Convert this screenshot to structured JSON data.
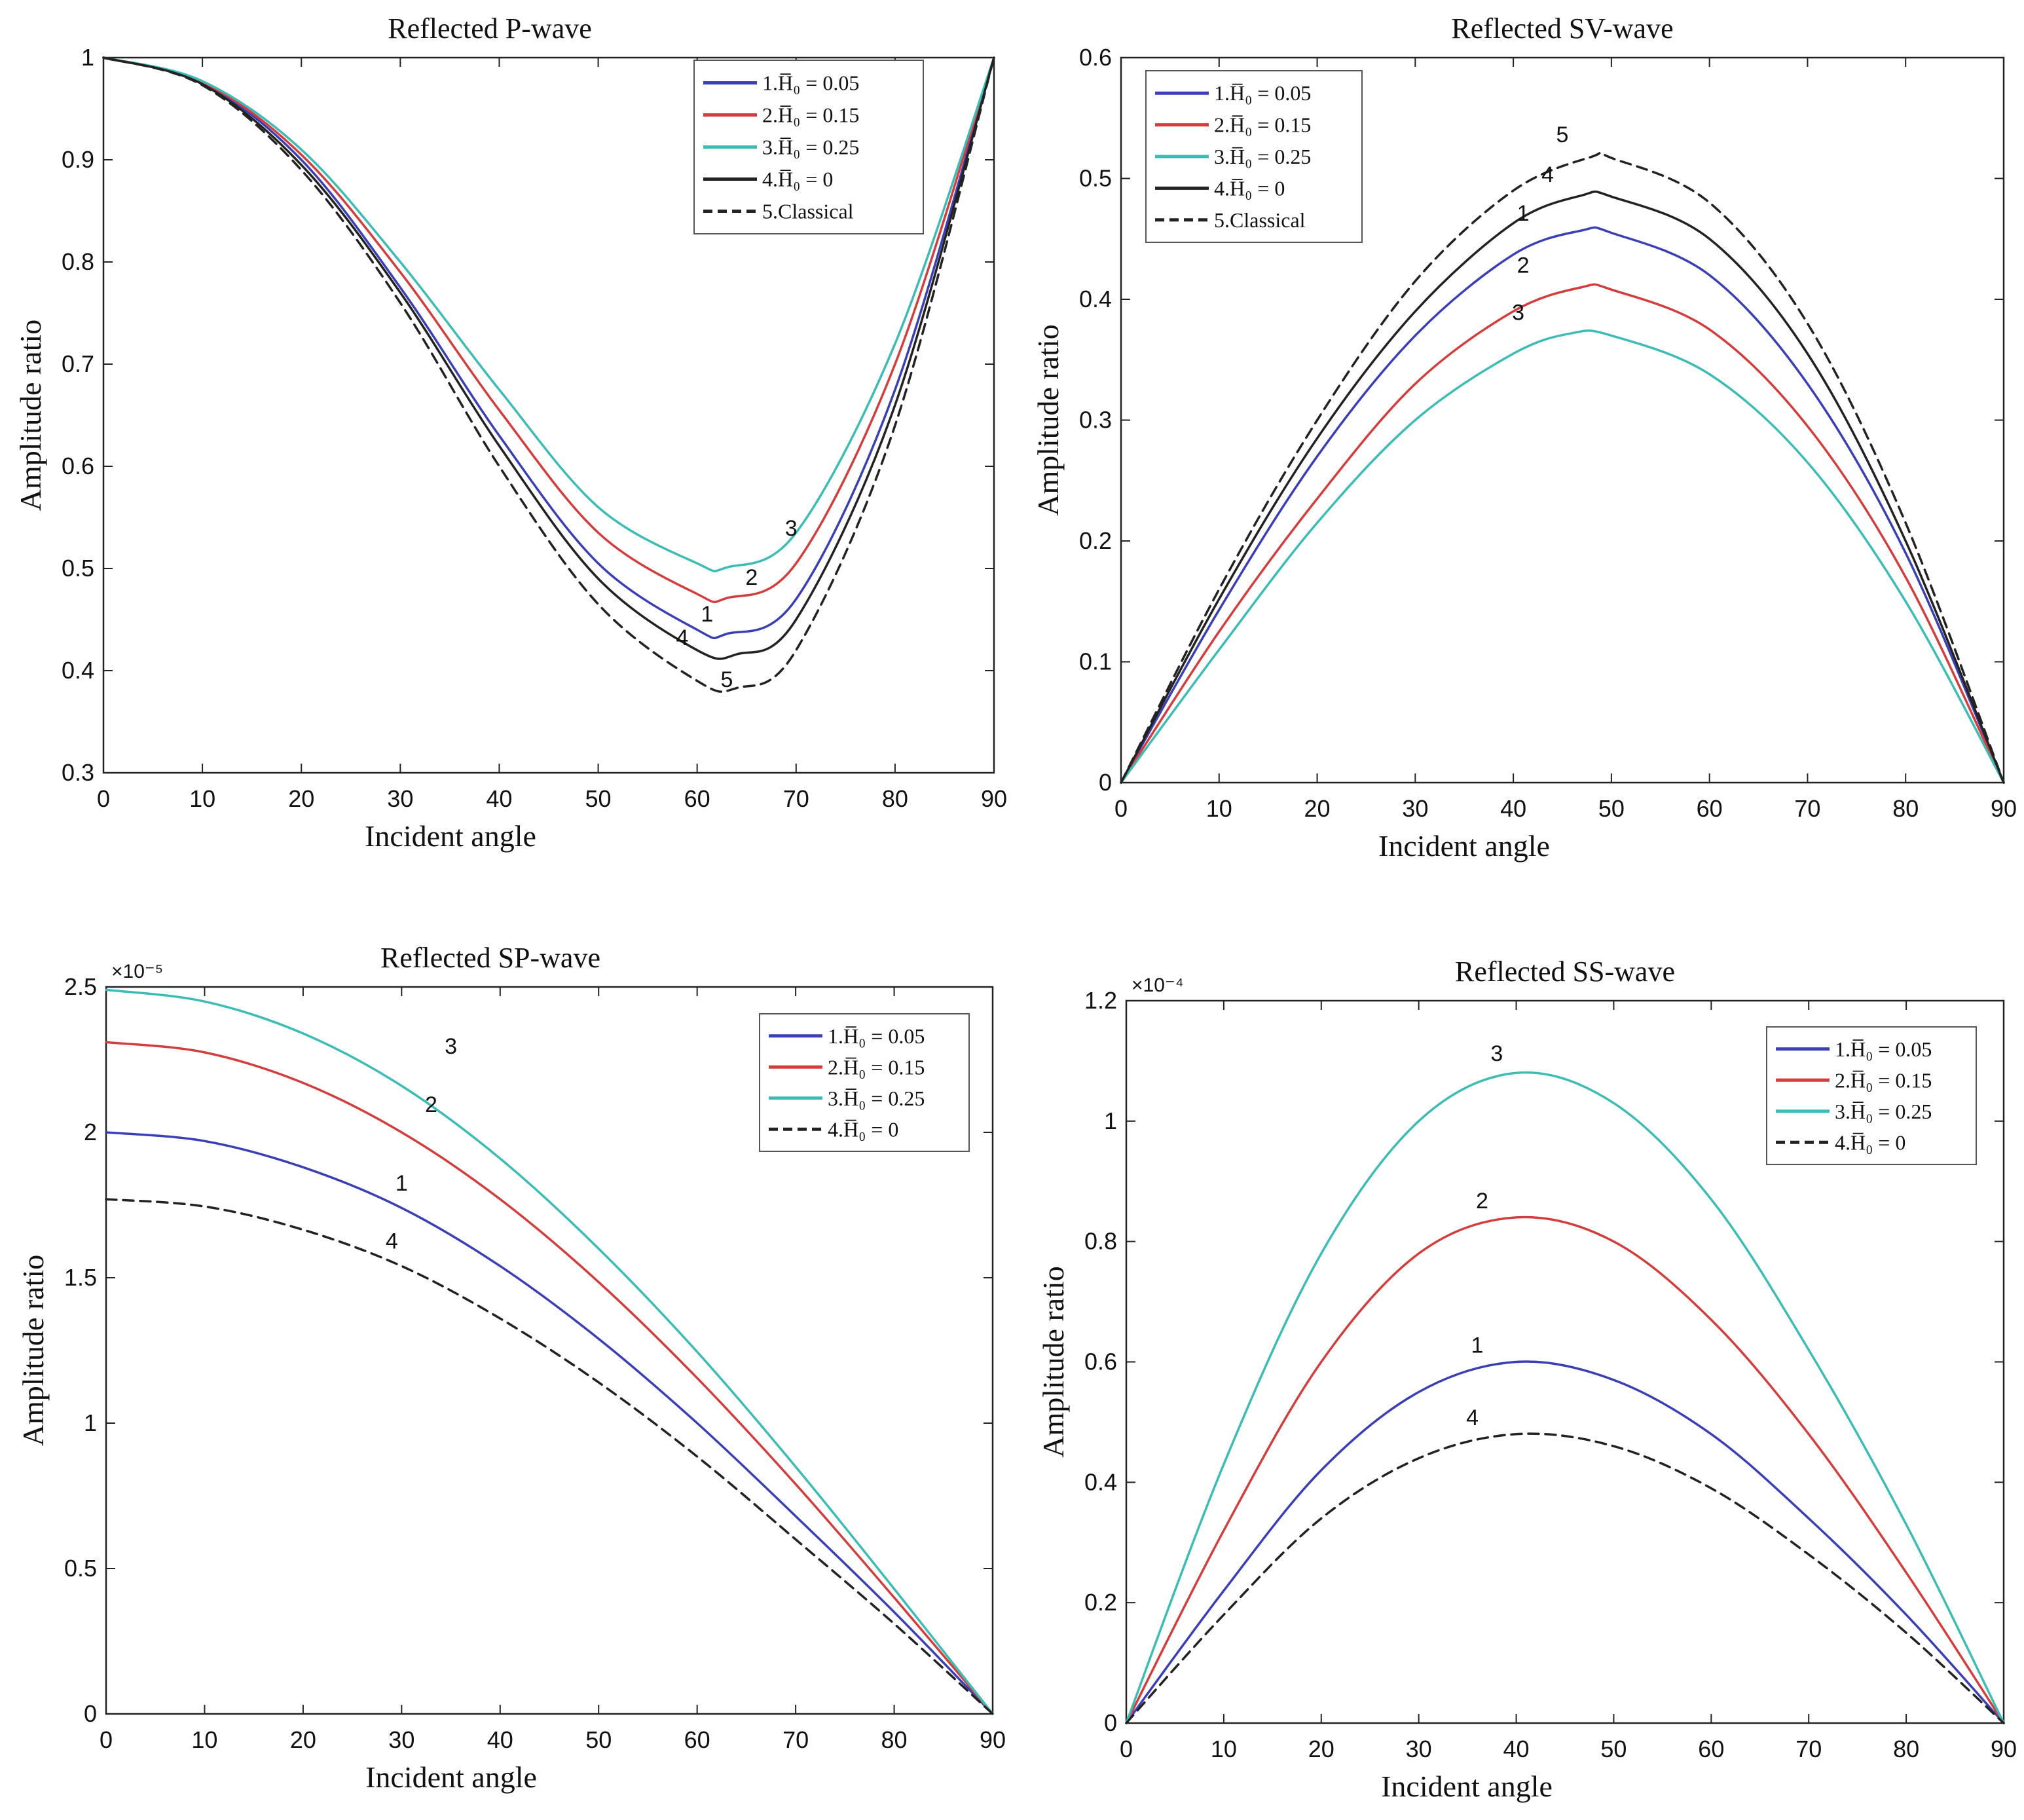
{
  "chart_data": [
    {
      "type": "line",
      "title": "Reflected P-wave",
      "xlabel": "Incident angle",
      "ylabel": "Amplitude ratio",
      "xlim": [
        0,
        90
      ],
      "ylim": [
        0.3,
        1
      ],
      "xticks": [
        "0",
        "10",
        "20",
        "30",
        "40",
        "50",
        "60",
        "70",
        "80",
        "90"
      ],
      "yticks": [
        "0.3",
        "0.4",
        "0.5",
        "0.6",
        "0.7",
        "0.8",
        "0.9",
        "1"
      ],
      "exponent": "",
      "legend_position": "top-right",
      "series": [
        {
          "name": "1.H̅₀ = 0.05",
          "label": "1",
          "color": "#3b3fb6",
          "dash": false,
          "x": [
            0,
            10,
            20,
            30,
            40,
            50,
            60,
            63,
            70,
            80,
            90
          ],
          "values": [
            1,
            0.975,
            0.9,
            0.775,
            0.63,
            0.505,
            0.44,
            0.436,
            0.47,
            0.675,
            1
          ]
        },
        {
          "name": "2.H̅₀ = 0.15",
          "label": "2",
          "color": "#d43d3d",
          "dash": false,
          "x": [
            0,
            10,
            20,
            30,
            40,
            50,
            60,
            63,
            70,
            80,
            90
          ],
          "values": [
            1,
            0.976,
            0.905,
            0.79,
            0.655,
            0.535,
            0.475,
            0.471,
            0.505,
            0.7,
            1
          ]
        },
        {
          "name": "3.H̅₀ = 0.25",
          "label": "3",
          "color": "#3dbcb6",
          "dash": false,
          "x": [
            0,
            10,
            20,
            30,
            40,
            50,
            60,
            63,
            70,
            80,
            90
          ],
          "values": [
            1,
            0.977,
            0.91,
            0.8,
            0.675,
            0.56,
            0.505,
            0.501,
            0.535,
            0.72,
            1
          ]
        },
        {
          "name": "4.H̅₀ = 0",
          "label": "4",
          "color": "#222222",
          "dash": false,
          "x": [
            0,
            10,
            20,
            30,
            40,
            50,
            60,
            64,
            70,
            80,
            90
          ],
          "values": [
            1,
            0.974,
            0.895,
            0.77,
            0.62,
            0.49,
            0.42,
            0.416,
            0.45,
            0.66,
            1
          ]
        },
        {
          "name": "5.Classical",
          "label": "5",
          "color": "#222222",
          "dash": true,
          "x": [
            0,
            10,
            20,
            30,
            40,
            50,
            60,
            64,
            70,
            80,
            90
          ],
          "values": [
            1,
            0.973,
            0.89,
            0.76,
            0.6,
            0.465,
            0.39,
            0.383,
            0.42,
            0.64,
            1
          ]
        }
      ],
      "labels": [
        {
          "text": "3",
          "x": 69.5,
          "y": 0.532
        },
        {
          "text": "2",
          "x": 65.5,
          "y": 0.484
        },
        {
          "text": "1",
          "x": 61.0,
          "y": 0.448
        },
        {
          "text": "4",
          "x": 58.5,
          "y": 0.425
        },
        {
          "text": "5",
          "x": 63.0,
          "y": 0.384
        }
      ]
    },
    {
      "type": "line",
      "title": "Reflected SV-wave",
      "xlabel": "Incident angle",
      "ylabel": "Amplitude ratio",
      "xlim": [
        0,
        90
      ],
      "ylim": [
        0,
        0.6
      ],
      "xticks": [
        "0",
        "10",
        "20",
        "30",
        "40",
        "50",
        "60",
        "70",
        "80",
        "90"
      ],
      "yticks": [
        "0",
        "0.1",
        "0.2",
        "0.3",
        "0.4",
        "0.5",
        "0.6"
      ],
      "exponent": "",
      "legend_position": "top-left",
      "series": [
        {
          "name": "1.H̅₀ = 0.05",
          "label": "1",
          "color": "#3b3fb6",
          "dash": false,
          "x": [
            0,
            10,
            20,
            30,
            40,
            47,
            50,
            60,
            70,
            80,
            90
          ],
          "values": [
            0,
            0.143,
            0.27,
            0.37,
            0.437,
            0.457,
            0.455,
            0.42,
            0.33,
            0.19,
            0
          ]
        },
        {
          "name": "2.H̅₀ = 0.15",
          "label": "2",
          "color": "#d43d3d",
          "dash": false,
          "x": [
            0,
            10,
            20,
            30,
            40,
            47,
            50,
            60,
            70,
            80,
            90
          ],
          "values": [
            0,
            0.125,
            0.235,
            0.33,
            0.39,
            0.41,
            0.408,
            0.375,
            0.295,
            0.17,
            0
          ]
        },
        {
          "name": "3.H̅₀ = 0.25",
          "label": "3",
          "color": "#3dbcb6",
          "dash": false,
          "x": [
            0,
            10,
            20,
            30,
            40,
            46,
            50,
            60,
            70,
            80,
            90
          ],
          "values": [
            0,
            0.11,
            0.215,
            0.3,
            0.355,
            0.372,
            0.37,
            0.338,
            0.265,
            0.15,
            0
          ]
        },
        {
          "name": "4.H̅₀ = 0",
          "label": "4",
          "color": "#222222",
          "dash": false,
          "x": [
            0,
            10,
            20,
            30,
            40,
            47,
            50,
            60,
            70,
            80,
            90
          ],
          "values": [
            0,
            0.152,
            0.285,
            0.39,
            0.463,
            0.486,
            0.485,
            0.45,
            0.355,
            0.2,
            0
          ]
        },
        {
          "name": "5.Classical",
          "label": "5",
          "color": "#222222",
          "dash": true,
          "x": [
            0,
            10,
            20,
            30,
            40,
            48,
            50,
            60,
            70,
            80,
            90
          ],
          "values": [
            0,
            0.16,
            0.3,
            0.415,
            0.49,
            0.518,
            0.517,
            0.48,
            0.38,
            0.215,
            0
          ]
        }
      ],
      "labels": [
        {
          "text": "5",
          "x": 45.0,
          "y": 0.53
        },
        {
          "text": "4",
          "x": 43.5,
          "y": 0.497
        },
        {
          "text": "1",
          "x": 41.0,
          "y": 0.465
        },
        {
          "text": "2",
          "x": 41.0,
          "y": 0.422
        },
        {
          "text": "3",
          "x": 40.5,
          "y": 0.383
        }
      ]
    },
    {
      "type": "line",
      "title": "Reflected SP-wave",
      "xlabel": "Incident angle",
      "ylabel": "Amplitude ratio",
      "xlim": [
        0,
        90
      ],
      "ylim": [
        0,
        2.5
      ],
      "xticks": [
        "0",
        "10",
        "20",
        "30",
        "40",
        "50",
        "60",
        "70",
        "80",
        "90"
      ],
      "yticks": [
        "0",
        "0.5",
        "1",
        "1.5",
        "2",
        "2.5"
      ],
      "exponent": "×10⁻⁵",
      "legend_position": "top-right",
      "series": [
        {
          "name": "1.H̅₀ = 0.05",
          "label": "1",
          "color": "#3b3fb6",
          "dash": false,
          "x": [
            0,
            10,
            20,
            30,
            40,
            50,
            60,
            70,
            80,
            90
          ],
          "values": [
            2.0,
            1.97,
            1.88,
            1.74,
            1.54,
            1.29,
            1.0,
            0.68,
            0.35,
            0
          ]
        },
        {
          "name": "2.H̅₀ = 0.15",
          "label": "2",
          "color": "#d43d3d",
          "dash": false,
          "x": [
            0,
            10,
            20,
            30,
            40,
            50,
            60,
            70,
            80,
            90
          ],
          "values": [
            2.31,
            2.275,
            2.17,
            2.0,
            1.77,
            1.485,
            1.155,
            0.79,
            0.4,
            0
          ]
        },
        {
          "name": "3.H̅₀ = 0.25",
          "label": "3",
          "color": "#3dbcb6",
          "dash": false,
          "x": [
            0,
            10,
            20,
            30,
            40,
            50,
            60,
            70,
            80,
            90
          ],
          "values": [
            2.49,
            2.45,
            2.34,
            2.16,
            1.91,
            1.6,
            1.245,
            0.85,
            0.43,
            0
          ]
        },
        {
          "name": "4.H̅₀ = 0",
          "label": "4",
          "color": "#222222",
          "dash": true,
          "x": [
            0,
            10,
            20,
            30,
            40,
            50,
            60,
            70,
            80,
            90
          ],
          "values": [
            1.77,
            1.745,
            1.665,
            1.54,
            1.36,
            1.14,
            0.885,
            0.6,
            0.31,
            0
          ]
        }
      ],
      "labels": [
        {
          "text": "3",
          "x": 35.0,
          "y": 2.27
        },
        {
          "text": "2",
          "x": 33.0,
          "y": 2.07
        },
        {
          "text": "1",
          "x": 30.0,
          "y": 1.8
        },
        {
          "text": "4",
          "x": 29.0,
          "y": 1.6
        }
      ]
    },
    {
      "type": "line",
      "title": "Reflected SS-wave",
      "xlabel": "Incident angle",
      "ylabel": "Amplitude ratio",
      "xlim": [
        0,
        90
      ],
      "ylim": [
        0,
        1.2
      ],
      "xticks": [
        "0",
        "10",
        "20",
        "30",
        "40",
        "50",
        "60",
        "70",
        "80",
        "90"
      ],
      "yticks": [
        "0",
        "0.2",
        "0.4",
        "0.6",
        "0.8",
        "1",
        "1.2"
      ],
      "exponent": "×10⁻⁴",
      "legend_position": "top-right",
      "series": [
        {
          "name": "1.H̅₀ = 0.05",
          "label": "1",
          "color": "#3b3fb6",
          "dash": false,
          "x": [
            0,
            10,
            20,
            30,
            40,
            50,
            60,
            70,
            80,
            90
          ],
          "values": [
            0,
            0.22,
            0.42,
            0.55,
            0.6,
            0.57,
            0.48,
            0.34,
            0.18,
            0
          ]
        },
        {
          "name": "2.H̅₀ = 0.15",
          "label": "2",
          "color": "#d43d3d",
          "dash": false,
          "x": [
            0,
            10,
            20,
            30,
            40,
            50,
            60,
            70,
            80,
            90
          ],
          "values": [
            0,
            0.32,
            0.6,
            0.78,
            0.84,
            0.8,
            0.67,
            0.48,
            0.25,
            0
          ]
        },
        {
          "name": "3.H̅₀ = 0.25",
          "label": "3",
          "color": "#3dbcb6",
          "dash": false,
          "x": [
            0,
            10,
            20,
            30,
            40,
            50,
            60,
            70,
            80,
            90
          ],
          "values": [
            0,
            0.43,
            0.78,
            1.0,
            1.08,
            1.03,
            0.87,
            0.62,
            0.33,
            0
          ]
        },
        {
          "name": "4.H̅₀ = 0",
          "label": "4",
          "color": "#222222",
          "dash": true,
          "x": [
            0,
            10,
            20,
            30,
            40,
            50,
            60,
            70,
            80,
            90
          ],
          "values": [
            0,
            0.18,
            0.34,
            0.44,
            0.48,
            0.46,
            0.39,
            0.28,
            0.15,
            0
          ]
        }
      ],
      "labels": [
        {
          "text": "3",
          "x": 38.0,
          "y": 1.1
        },
        {
          "text": "2",
          "x": 36.5,
          "y": 0.855
        },
        {
          "text": "1",
          "x": 36.0,
          "y": 0.615
        },
        {
          "text": "4",
          "x": 35.5,
          "y": 0.495
        }
      ]
    }
  ]
}
